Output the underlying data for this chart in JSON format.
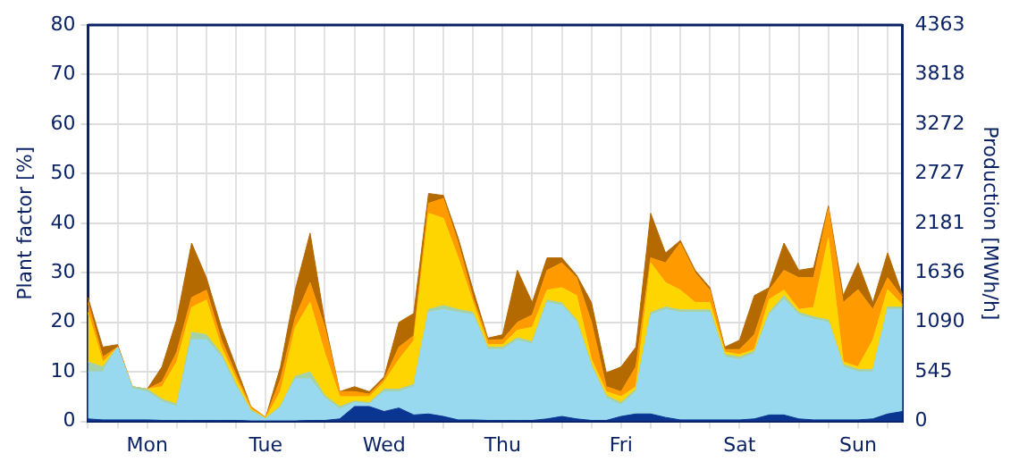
{
  "chart_data": {
    "type": "area",
    "stacked": true,
    "ylabel": "Plant factor [%]",
    "y2label": "Production [MWh/h]",
    "categories": [
      null,
      null,
      null,
      null,
      "Mon",
      null,
      null,
      null,
      null,
      null,
      null,
      null,
      "Tue",
      null,
      null,
      null,
      null,
      null,
      null,
      null,
      "Wed",
      null,
      null,
      null,
      null,
      null,
      null,
      null,
      "Thu",
      null,
      null,
      null,
      null,
      null,
      null,
      null,
      "Fri",
      null,
      null,
      null,
      null,
      null,
      null,
      null,
      "Sat",
      null,
      null,
      null,
      null,
      null,
      null,
      null,
      "Sun",
      null,
      null,
      null
    ],
    "ylim": [
      0,
      80
    ],
    "yticks": [
      0,
      10,
      20,
      30,
      40,
      50,
      60,
      70,
      80
    ],
    "y2lim": [
      0,
      4363
    ],
    "y2ticks": [
      0,
      545,
      1090,
      1636,
      2181,
      2727,
      3272,
      3818,
      4363
    ],
    "grid": true,
    "legend": false,
    "series": [
      {
        "color": "#0a3590",
        "values": [
          0.5,
          0.3,
          0.3,
          0.3,
          0.3,
          0.2,
          0.2,
          0.2,
          0.2,
          0.2,
          0.2,
          0.1,
          0.1,
          0.1,
          0.1,
          0.2,
          0.2,
          0.5,
          3,
          3,
          2,
          2.7,
          1.3,
          1.5,
          1,
          0.3,
          0.3,
          0.2,
          0.2,
          0.2,
          0.2,
          0.5,
          1,
          0.5,
          0.2,
          0.2,
          1,
          1.5,
          1.5,
          0.8,
          0.3,
          0.3,
          0.3,
          0.3,
          0.3,
          0.5,
          1.3,
          1.3,
          0.5,
          0.3,
          0.3,
          0.3,
          0.3,
          0.5,
          1.5,
          2
        ]
      },
      {
        "color": "#98d9ef",
        "values": [
          9.5,
          9.7,
          14.7,
          6.3,
          5.7,
          3.8,
          2.8,
          16.3,
          16.3,
          12.8,
          6.8,
          1.9,
          0.4,
          2.7,
          8.5,
          8.4,
          4.5,
          2,
          0.8,
          0.5,
          4,
          3.3,
          5.7,
          20.5,
          21.6,
          21.7,
          21.2,
          14.3,
          14.3,
          16.2,
          15.4,
          23.5,
          22.4,
          19.5,
          10.8,
          4.5,
          2.3,
          4.5,
          20,
          21.8,
          21.7,
          21.7,
          21.7,
          12.7,
          12.2,
          13.2,
          20.2,
          23.3,
          21,
          20.3,
          19.7,
          10.7,
          9.7,
          9.5,
          21.1,
          20.6
        ]
      },
      {
        "color": "#a5d1a6",
        "values": [
          2,
          1,
          0,
          0.4,
          0.5,
          0.5,
          0.5,
          1.5,
          1,
          0.7,
          0.5,
          0.3,
          0.1,
          0.3,
          0.5,
          1.4,
          0.5,
          0.5,
          0.3,
          0.3,
          0.5,
          0.5,
          0.5,
          0.6,
          0.8,
          0.6,
          0.5,
          0.5,
          0.5,
          0.5,
          0.5,
          0.5,
          0.5,
          0.5,
          0.5,
          0.5,
          0.5,
          0.5,
          0.5,
          0.5,
          0.5,
          0.5,
          0.5,
          0.5,
          0.5,
          0.5,
          0.5,
          0.8,
          0.5,
          0.5,
          0.5,
          0.5,
          0.5,
          0.5,
          0.5,
          0.5
        ]
      },
      {
        "color": "#ffd500",
        "values": [
          10,
          1,
          0,
          0,
          0,
          2.5,
          8.5,
          5,
          7,
          1.3,
          1.1,
          0.2,
          0.1,
          2.9,
          9.9,
          14,
          8.5,
          2,
          0.9,
          1.2,
          1.5,
          6,
          8.8,
          19.4,
          17.6,
          10.4,
          2,
          0.5,
          0.5,
          1.5,
          2.9,
          2,
          3.1,
          4.9,
          1,
          0.8,
          1.2,
          0.5,
          10,
          4.9,
          4,
          1.5,
          1.5,
          0.5,
          0.5,
          0.3,
          2.6,
          1.1,
          0.6,
          1.9,
          16.5,
          0.5,
          0.5,
          5.9,
          3.5,
          0.4
        ]
      },
      {
        "color": "#ff9a00",
        "values": [
          2,
          1,
          0,
          0,
          0,
          1,
          2,
          2,
          2,
          1.5,
          0.9,
          0.5,
          0.1,
          2.5,
          2,
          4,
          5.3,
          1,
          1,
          0.5,
          0.5,
          2.5,
          1,
          2,
          4,
          3,
          1,
          0.9,
          1,
          1.6,
          2.5,
          4,
          5,
          3.6,
          7.5,
          1,
          1,
          4,
          1,
          4,
          9.5,
          6,
          2.5,
          0.5,
          1,
          3,
          1.9,
          4,
          6.4,
          6,
          6,
          12,
          15.6,
          6.2,
          2.4,
          1.5
        ]
      },
      {
        "color": "#b56a00",
        "values": [
          1,
          2,
          0.5,
          0,
          0,
          3,
          6.6,
          11,
          2.5,
          2.5,
          1.5,
          0,
          0,
          2.5,
          5.6,
          10,
          1,
          0,
          1,
          0.5,
          0.5,
          5,
          4.5,
          2,
          0.6,
          1,
          1.6,
          0.4,
          1,
          10.5,
          2.5,
          2.5,
          1,
          0.5,
          4,
          2.8,
          5,
          4,
          9,
          2,
          0.5,
          0.5,
          0.5,
          0.5,
          1.9,
          7.9,
          0.5,
          5.5,
          1.5,
          2,
          0.5,
          1.4,
          5.4,
          1.4,
          5,
          0.5
        ]
      }
    ]
  }
}
